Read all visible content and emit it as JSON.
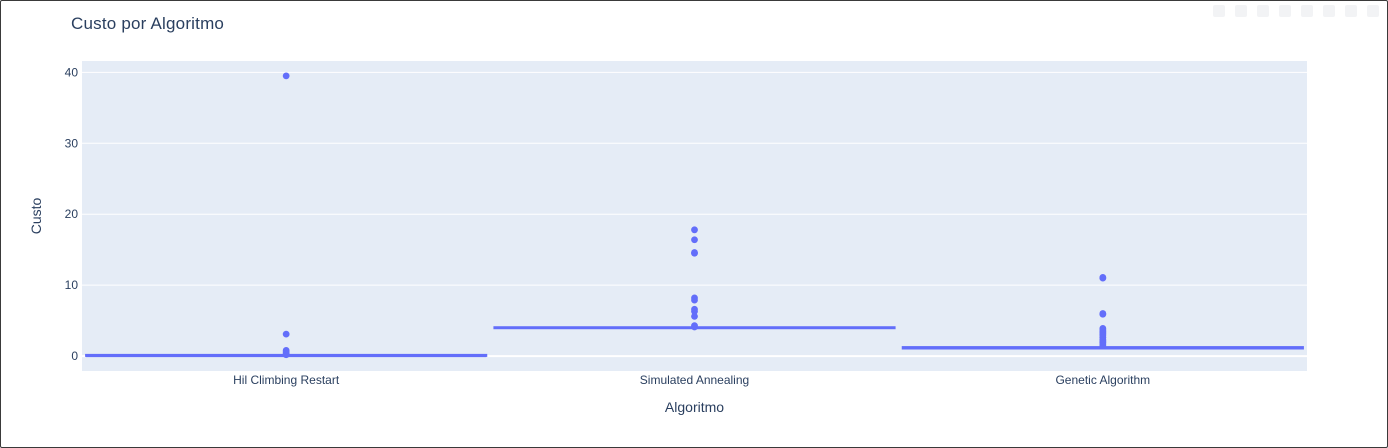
{
  "chart_data": {
    "type": "box",
    "title": "Custo por Algoritmo",
    "xlabel": "Algoritmo",
    "ylabel": "Custo",
    "categories": [
      "Hil Climbing Restart",
      "Simulated Annealing",
      "Genetic Algorithm"
    ],
    "ylim": [
      -2.1,
      41.6
    ],
    "yticks": [
      0,
      10,
      20,
      30,
      40
    ],
    "grid": true,
    "colors": {
      "plot_bg": "#e5ecf6",
      "grid": "#ffffff",
      "box": "#636efa",
      "text": "#2a3f5f"
    },
    "boxes": [
      {
        "category": "Hil Climbing Restart",
        "q1": 0.0,
        "median": 0.0,
        "q3": 0.1,
        "whisker_low": 0.0,
        "whisker_high": 0.1,
        "outliers": [
          39.5,
          3.1,
          0.8,
          0.6,
          0.4,
          0.2
        ]
      },
      {
        "category": "Simulated Annealing",
        "q1": 4.0,
        "median": 4.0,
        "q3": 4.0,
        "whisker_low": 4.0,
        "whisker_high": 4.0,
        "outliers": [
          17.8,
          16.4,
          14.6,
          14.5,
          8.2,
          7.9,
          6.6,
          6.3,
          5.6,
          4.3,
          4.1
        ]
      },
      {
        "category": "Genetic Algorithm",
        "q1": 1.0,
        "median": 1.1,
        "q3": 1.2,
        "whisker_low": 1.0,
        "whisker_high": 1.3,
        "outliers": [
          11.1,
          11.0,
          6.0,
          5.9,
          3.9,
          3.7,
          3.5,
          3.3,
          3.1,
          2.9,
          2.6,
          2.3,
          2.1,
          1.9,
          1.7,
          1.5
        ]
      }
    ]
  },
  "toolbar": {
    "icons": [
      "camera-icon",
      "zoom-icon",
      "pan-icon",
      "zoom-in-icon",
      "zoom-out-icon",
      "autoscale-icon",
      "reset-icon",
      "plotly-logo"
    ]
  }
}
